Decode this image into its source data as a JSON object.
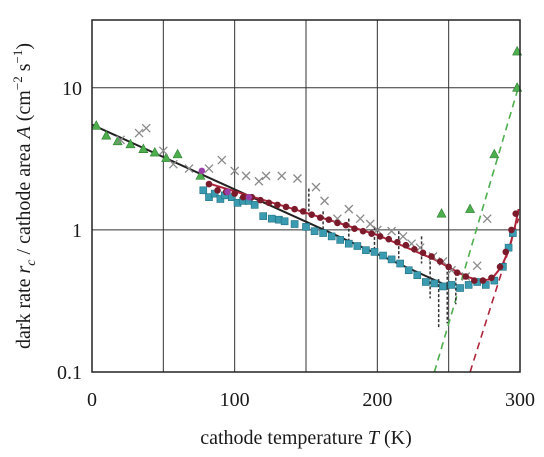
{
  "chart_data": {
    "type": "scatter",
    "title": "",
    "xlabel": {
      "text": "cathode temperature ",
      "var": "T",
      "unit": " (K)"
    },
    "ylabel": {
      "text": "dark rate ",
      "var": "r",
      "sub": "c",
      "mid": " / cathode area ",
      "var2": "A",
      "unit_open": "  (cm",
      "unit_exp1": "−2",
      "unit_mid": " s",
      "unit_exp2": "−1",
      "unit_close": ")"
    },
    "xlim": [
      0,
      300
    ],
    "ylim": [
      0.1,
      30
    ],
    "yscale": "log",
    "grid": true,
    "x_ticks": [
      0,
      100,
      200,
      300
    ],
    "x_grid": [
      0,
      50,
      100,
      150,
      200,
      250,
      300
    ],
    "y_ticks": [
      {
        "value": 0.1,
        "label": "0.1"
      },
      {
        "value": 1,
        "label": "1"
      },
      {
        "value": 10,
        "label": "10"
      }
    ],
    "colors": {
      "green": "#4cae4c",
      "cross": "#8a8a8a",
      "teal": "#3a9bb0",
      "red": "#b0243a",
      "darkred": "#7a1a2a",
      "purple": "#9a3fa8",
      "black": "#222222"
    },
    "series": [
      {
        "marker": "triangle",
        "color": "green",
        "points": [
          [
            3,
            5.4
          ],
          [
            10,
            4.6
          ],
          [
            18,
            4.2
          ],
          [
            27,
            4.0
          ],
          [
            36,
            3.7
          ],
          [
            44,
            3.5
          ],
          [
            52,
            3.2
          ],
          [
            60,
            3.4
          ],
          [
            76,
            2.4
          ],
          [
            245,
            1.3
          ],
          [
            265,
            1.4
          ],
          [
            282,
            3.4
          ],
          [
            298,
            10
          ],
          [
            298,
            18
          ]
        ]
      },
      {
        "marker": "cross",
        "color": "cross",
        "points": [
          [
            20,
            4.3
          ],
          [
            33,
            4.8
          ],
          [
            38,
            5.2
          ],
          [
            50,
            3.6
          ],
          [
            57,
            2.9
          ],
          [
            68,
            2.7
          ],
          [
            82,
            2.7
          ],
          [
            91,
            3.1
          ],
          [
            100,
            2.6
          ],
          [
            108,
            2.4
          ],
          [
            117,
            2.2
          ],
          [
            122,
            2.4
          ],
          [
            133,
            2.4
          ],
          [
            144,
            2.3
          ],
          [
            157,
            2.0
          ],
          [
            163,
            1.6
          ],
          [
            172,
            1.2
          ],
          [
            180,
            1.4
          ],
          [
            188,
            1.2
          ],
          [
            195,
            1.1
          ],
          [
            200,
            1.0
          ],
          [
            210,
            0.98
          ],
          [
            218,
            0.9
          ],
          [
            224,
            0.8
          ],
          [
            230,
            0.75
          ],
          [
            239,
            0.65
          ],
          [
            246,
            0.6
          ],
          [
            252,
            0.52
          ],
          [
            262,
            0.47
          ],
          [
            270,
            0.56
          ],
          [
            277,
            1.2
          ]
        ]
      },
      {
        "marker": "square",
        "color": "teal",
        "points": [
          [
            78,
            1.9
          ],
          [
            82,
            1.7
          ],
          [
            86,
            1.8
          ],
          [
            90,
            1.65
          ],
          [
            93,
            1.75
          ],
          [
            98,
            1.7
          ],
          [
            102,
            1.55
          ],
          [
            106,
            1.6
          ],
          [
            110,
            1.6
          ],
          [
            114,
            1.5
          ],
          [
            120,
            1.25
          ],
          [
            126,
            1.2
          ],
          [
            131,
            1.18
          ],
          [
            135,
            1.15
          ],
          [
            142,
            1.1
          ],
          [
            150,
            1.05
          ],
          [
            156,
            0.98
          ],
          [
            162,
            0.95
          ],
          [
            168,
            0.9
          ],
          [
            174,
            0.85
          ],
          [
            180,
            0.8
          ],
          [
            186,
            0.77
          ],
          [
            192,
            0.72
          ],
          [
            198,
            0.7
          ],
          [
            204,
            0.66
          ],
          [
            210,
            0.62
          ],
          [
            216,
            0.58
          ],
          [
            222,
            0.52
          ],
          [
            228,
            0.48
          ],
          [
            234,
            0.43
          ],
          [
            240,
            0.42
          ],
          [
            246,
            0.4
          ],
          [
            252,
            0.41
          ],
          [
            258,
            0.39
          ],
          [
            264,
            0.41
          ],
          [
            270,
            0.43
          ],
          [
            276,
            0.41
          ],
          [
            282,
            0.44
          ],
          [
            288,
            0.55
          ],
          [
            292,
            0.75
          ],
          [
            295,
            0.95
          ]
        ]
      },
      {
        "marker": "circle",
        "color": "darkred",
        "points": [
          [
            82,
            2.1
          ],
          [
            88,
            1.9
          ],
          [
            94,
            1.85
          ],
          [
            100,
            1.8
          ],
          [
            106,
            1.7
          ],
          [
            112,
            1.7
          ],
          [
            118,
            1.62
          ],
          [
            124,
            1.55
          ],
          [
            130,
            1.5
          ],
          [
            136,
            1.45
          ],
          [
            142,
            1.4
          ],
          [
            148,
            1.35
          ],
          [
            154,
            1.28
          ],
          [
            160,
            1.22
          ],
          [
            166,
            1.18
          ],
          [
            172,
            1.12
          ],
          [
            178,
            1.08
          ],
          [
            184,
            1.02
          ],
          [
            190,
            0.98
          ],
          [
            196,
            0.94
          ],
          [
            202,
            0.9
          ],
          [
            208,
            0.86
          ],
          [
            214,
            0.82
          ],
          [
            220,
            0.78
          ],
          [
            226,
            0.73
          ],
          [
            232,
            0.69
          ],
          [
            238,
            0.65
          ],
          [
            244,
            0.6
          ],
          [
            250,
            0.55
          ],
          [
            256,
            0.5
          ],
          [
            262,
            0.47
          ],
          [
            268,
            0.44
          ],
          [
            274,
            0.44
          ],
          [
            280,
            0.46
          ],
          [
            286,
            0.55
          ],
          [
            290,
            0.7
          ],
          [
            294,
            1.0
          ],
          [
            297,
            1.3
          ]
        ]
      },
      {
        "marker": "circle",
        "color": "purple",
        "points": [
          [
            77,
            2.6
          ],
          [
            95,
            1.85
          ],
          [
            110,
            1.7
          ]
        ]
      }
    ],
    "fit_lines": [
      {
        "color": "black",
        "dash": false,
        "points": [
          [
            0,
            5.5
          ],
          [
            250,
            0.4
          ]
        ]
      },
      {
        "color": "red",
        "dash": false,
        "points": [
          [
            80,
            2.15
          ],
          [
            150,
            1.32
          ],
          [
            200,
            0.92
          ],
          [
            240,
            0.62
          ],
          [
            262,
            0.47
          ],
          [
            272,
            0.44
          ],
          [
            280,
            0.45
          ],
          [
            287,
            0.55
          ],
          [
            292,
            0.72
          ],
          [
            296,
            1.0
          ],
          [
            299,
            1.4
          ]
        ]
      },
      {
        "color": "green",
        "dash": true,
        "points": [
          [
            240,
            0.1
          ],
          [
            299,
            10.2
          ]
        ]
      },
      {
        "color": "red",
        "dash": true,
        "points": [
          [
            265,
            0.1
          ],
          [
            299,
            1.2
          ]
        ]
      }
    ],
    "error_bars": [
      {
        "x": 152,
        "y": 1.65,
        "lo": 1.35,
        "hi": 1.95
      },
      {
        "x": 162,
        "y": 1.1,
        "lo": 0.9,
        "hi": 1.35
      },
      {
        "x": 180,
        "y": 0.98,
        "lo": 0.8,
        "hi": 1.2
      },
      {
        "x": 198,
        "y": 0.85,
        "lo": 0.7,
        "hi": 1.05
      },
      {
        "x": 215,
        "y": 0.78,
        "lo": 0.63,
        "hi": 0.98
      },
      {
        "x": 231,
        "y": 0.72,
        "lo": 0.58,
        "hi": 0.9
      },
      {
        "x": 237,
        "y": 0.45,
        "lo": 0.33,
        "hi": 0.6
      },
      {
        "x": 243,
        "y": 0.3,
        "lo": 0.2,
        "hi": 0.45
      },
      {
        "x": 249,
        "y": 0.36,
        "lo": 0.22,
        "hi": 0.55
      },
      {
        "x": 255,
        "y": 0.4,
        "lo": 0.3,
        "hi": 0.5
      }
    ]
  }
}
